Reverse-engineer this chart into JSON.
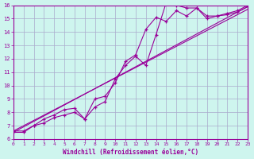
{
  "xlabel": "Windchill (Refroidissement éolien,°C)",
  "background_color": "#cef5ee",
  "line_color": "#990099",
  "grid_color": "#aaaacc",
  "xmin": 0,
  "xmax": 23,
  "ymin": 6,
  "ymax": 16,
  "series1_x": [
    0,
    1,
    2,
    3,
    4,
    5,
    6,
    7,
    8,
    9,
    10,
    11,
    12,
    13,
    14,
    15,
    16,
    17,
    18,
    19,
    20,
    21,
    22,
    23
  ],
  "series1_y": [
    6.6,
    6.6,
    7.0,
    7.5,
    7.8,
    8.2,
    8.3,
    7.5,
    8.4,
    8.8,
    10.5,
    11.5,
    12.2,
    11.5,
    13.8,
    16.2,
    16.0,
    15.8,
    15.8,
    15.2,
    15.2,
    15.4,
    15.6,
    16.0
  ],
  "series2_x": [
    0,
    1,
    2,
    3,
    4,
    5,
    6,
    7,
    8,
    9,
    10,
    11,
    12,
    13,
    14,
    15,
    16,
    17,
    18,
    19,
    20,
    21,
    22,
    23
  ],
  "series2_y": [
    6.5,
    6.5,
    7.0,
    7.2,
    7.6,
    7.8,
    8.0,
    7.5,
    9.0,
    9.2,
    10.2,
    11.8,
    12.3,
    14.2,
    15.1,
    14.8,
    15.6,
    15.2,
    15.8,
    15.0,
    15.2,
    15.3,
    15.5,
    15.9
  ],
  "trend1_x": [
    0,
    23
  ],
  "trend1_y": [
    6.5,
    15.9
  ],
  "trend2_x": [
    0,
    23
  ],
  "trend2_y": [
    6.6,
    15.7
  ]
}
